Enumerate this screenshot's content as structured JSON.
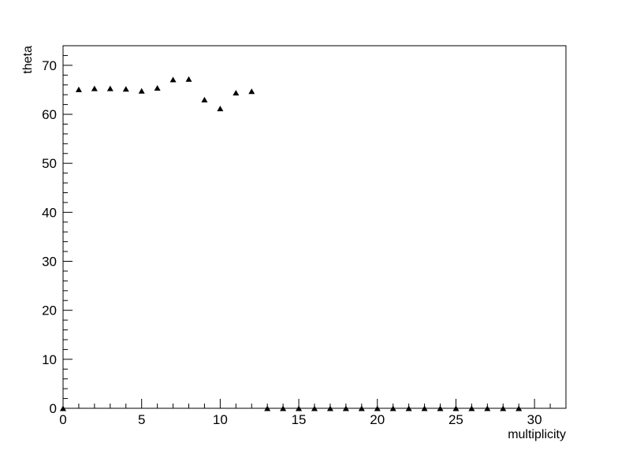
{
  "chart_data": {
    "type": "scatter",
    "title": "",
    "xlabel": "multiplicity",
    "ylabel": "theta",
    "xlim": [
      0,
      32
    ],
    "ylim": [
      0,
      74
    ],
    "xticks": [
      0,
      5,
      10,
      15,
      20,
      25,
      30
    ],
    "yticks": [
      0,
      10,
      20,
      30,
      40,
      50,
      60,
      70
    ],
    "grid": false,
    "marker": "triangle-up",
    "marker_color": "#000000",
    "series": [
      {
        "x": [
          0,
          1,
          2,
          3,
          4,
          5,
          6,
          7,
          8,
          9,
          10,
          11,
          12,
          13,
          14,
          15,
          16,
          17,
          18,
          19,
          20,
          21,
          22,
          23,
          24,
          25,
          26,
          27,
          28,
          29
        ],
        "y": [
          0,
          65.1,
          65.3,
          65.3,
          65.2,
          64.8,
          65.4,
          67.1,
          67.2,
          63.0,
          61.2,
          64.4,
          64.7,
          0,
          0,
          0,
          0,
          0,
          0,
          0,
          0,
          0,
          0,
          0,
          0,
          0,
          0,
          0,
          0,
          0
        ]
      }
    ]
  }
}
